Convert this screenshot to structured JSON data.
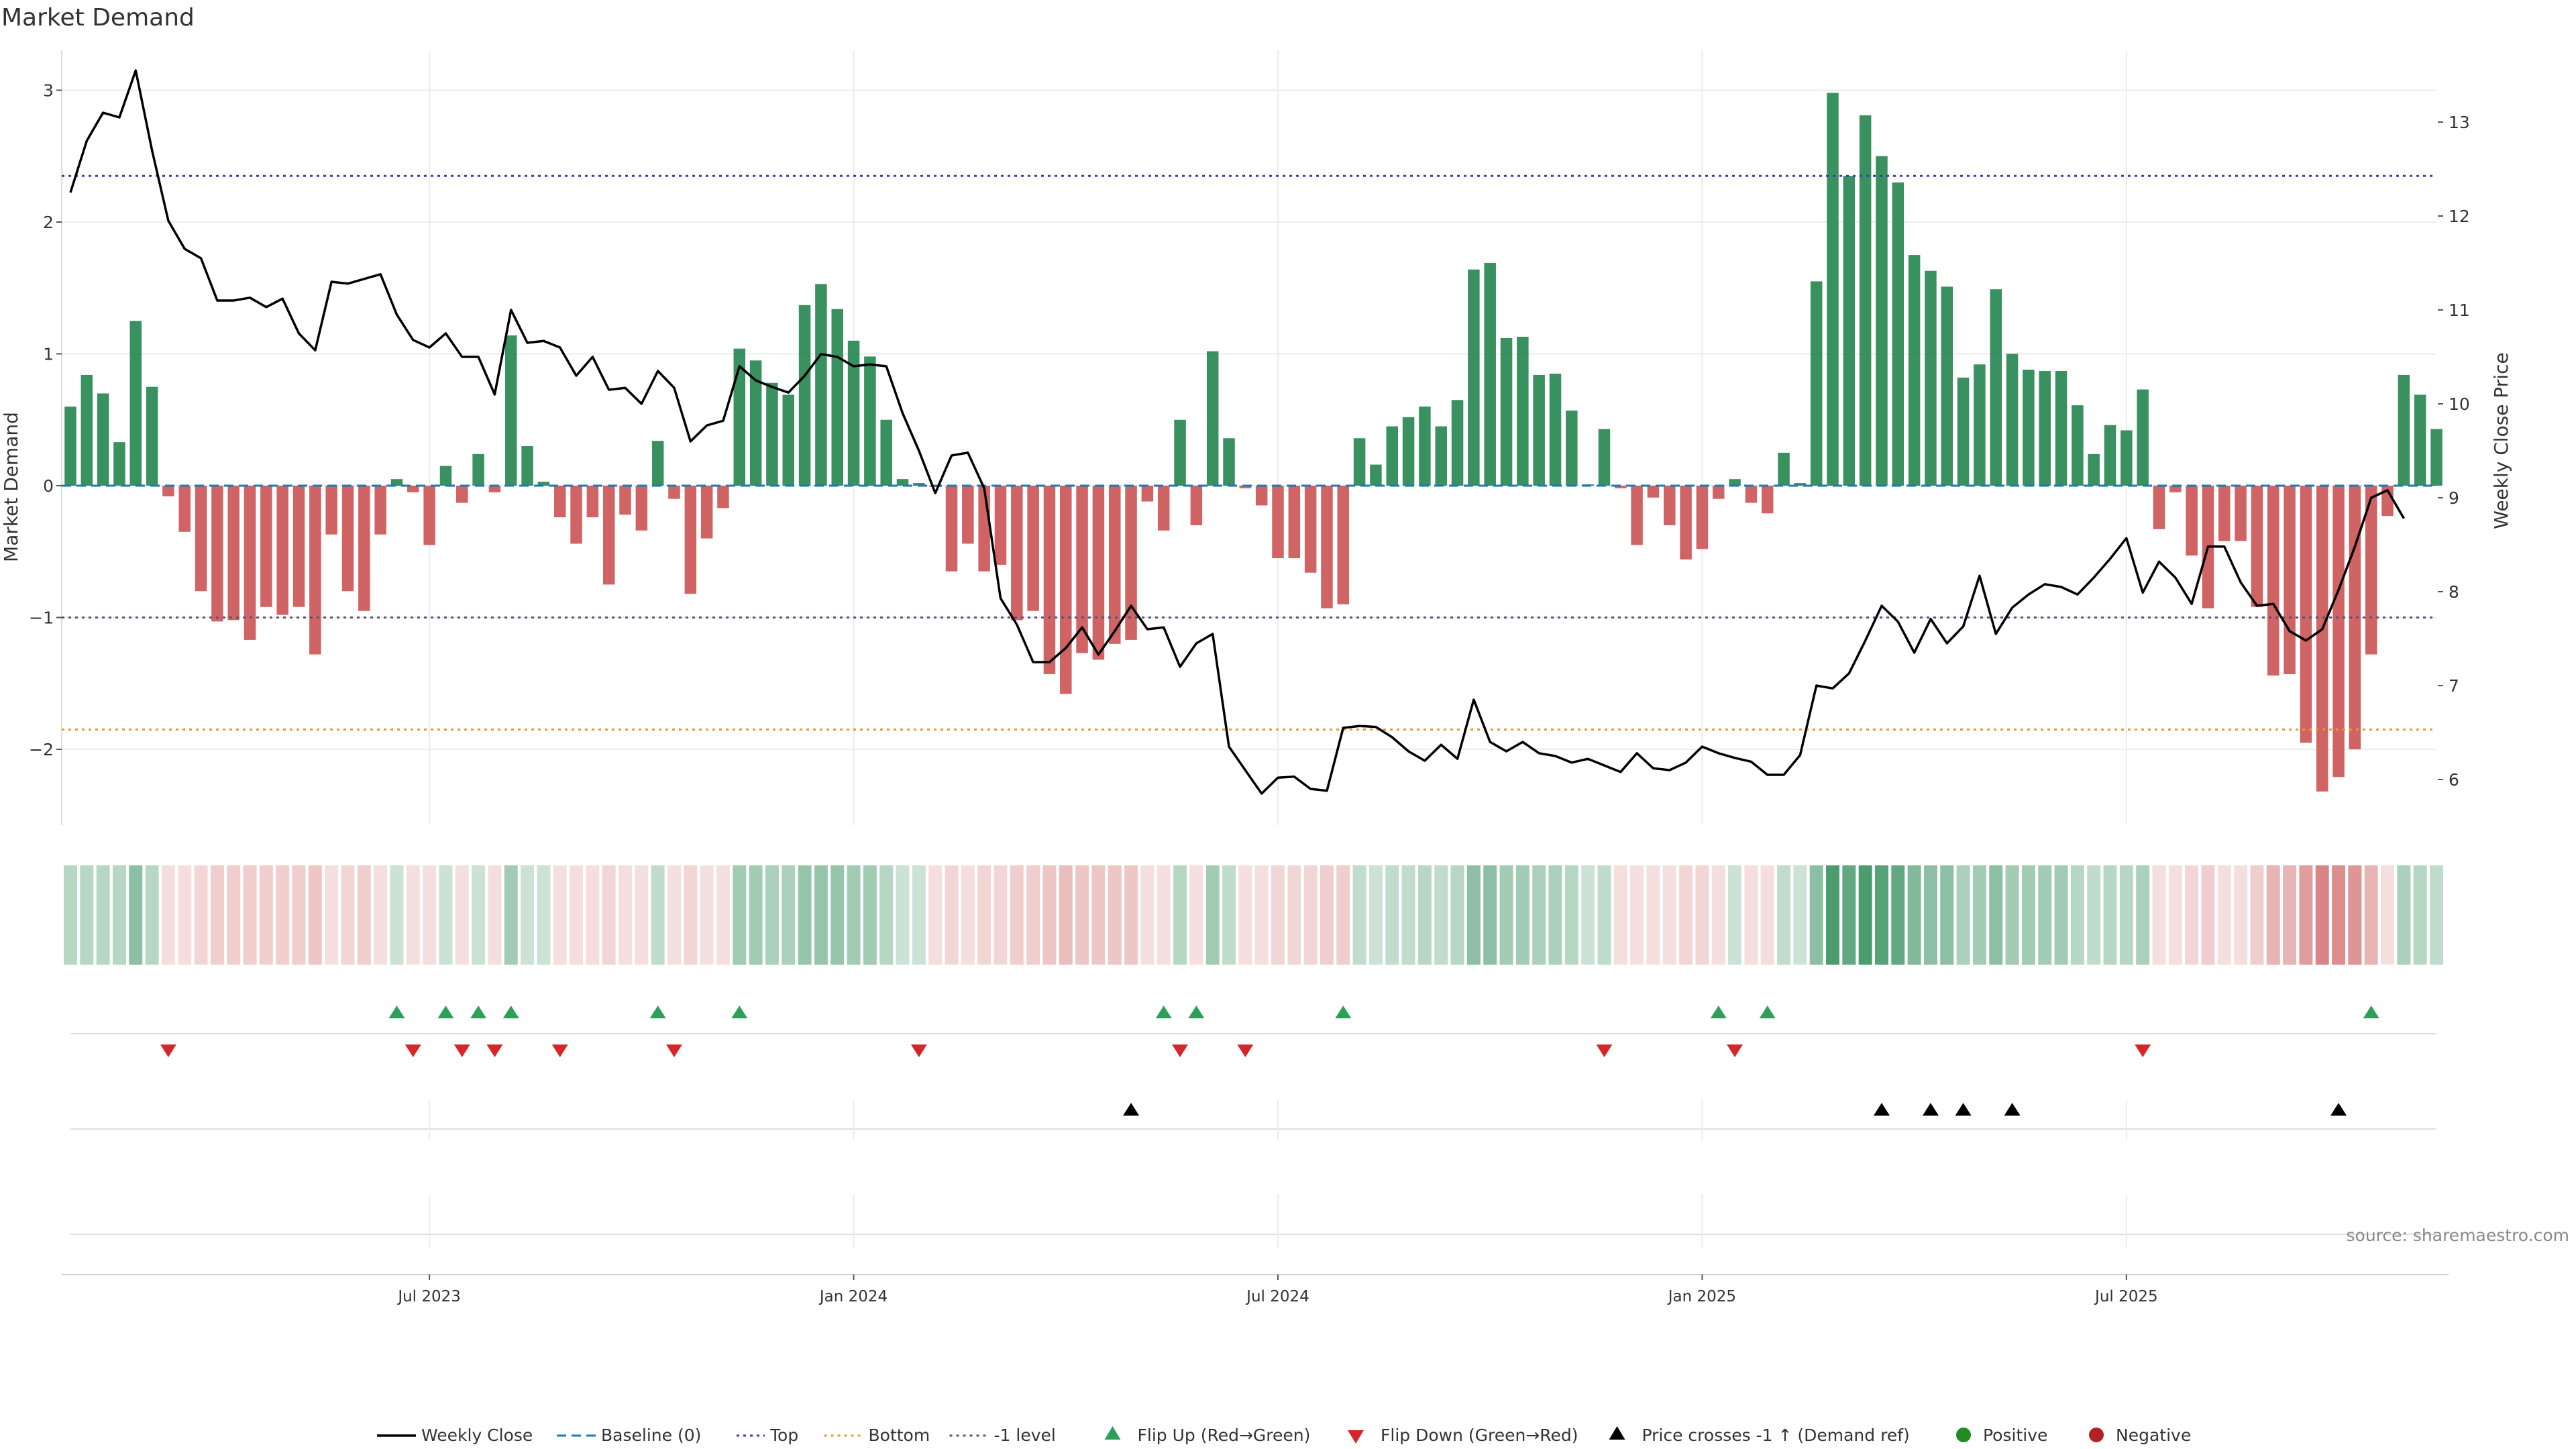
{
  "chart_data": {
    "type": "bar",
    "title": "Market Demand",
    "ylabel": "Market Demand",
    "y2label": "Weekly Close Price",
    "ylim": [
      -2.6,
      3.3
    ],
    "y2lim": [
      5.7,
      13.8
    ],
    "yticks": [
      3,
      2,
      1,
      0,
      -1,
      -2
    ],
    "ytick_labels": [
      "3",
      "2",
      "1",
      "0",
      "−1",
      "−2"
    ],
    "y2ticks": [
      13,
      12,
      11,
      10,
      9,
      8,
      7,
      6
    ],
    "xticks": [
      {
        "label": "Jul 2023",
        "index": 22
      },
      {
        "label": "Jan 2024",
        "index": 48
      },
      {
        "label": "Jul 2024",
        "index": 74
      },
      {
        "label": "Jan 2025",
        "index": 100
      },
      {
        "label": "Jul 2025",
        "index": 126
      }
    ],
    "levels": {
      "top": 2.35,
      "bottom": -1.85,
      "minus_one": -1
    },
    "demand": [
      0.6,
      0.84,
      0.7,
      0.33,
      1.25,
      0.75,
      -0.08,
      -0.35,
      -0.8,
      -1.03,
      -1.02,
      -1.17,
      -0.92,
      -0.98,
      -0.92,
      -1.28,
      -0.37,
      -0.8,
      -0.95,
      -0.37,
      0.05,
      -0.05,
      -0.45,
      0.15,
      -0.13,
      0.24,
      -0.05,
      1.14,
      0.3,
      0.03,
      -0.24,
      -0.44,
      -0.24,
      -0.75,
      -0.22,
      -0.34,
      0.34,
      -0.1,
      -0.82,
      -0.4,
      -0.17,
      1.04,
      0.95,
      0.78,
      0.69,
      1.37,
      1.53,
      1.34,
      1.1,
      0.98,
      0.5,
      0.05,
      0.02,
      -0.01,
      -0.65,
      -0.44,
      -0.65,
      -0.6,
      -1.02,
      -0.95,
      -1.43,
      -1.58,
      -1.27,
      -1.32,
      -1.2,
      -1.17,
      -0.12,
      -0.34,
      0.5,
      -0.3,
      1.02,
      0.36,
      -0.02,
      -0.15,
      -0.55,
      -0.55,
      -0.66,
      -0.93,
      -0.9,
      0.36,
      0.16,
      0.45,
      0.52,
      0.6,
      0.45,
      0.65,
      1.64,
      1.69,
      1.12,
      1.13,
      0.84,
      0.85,
      0.57,
      0.01,
      0.43,
      -0.02,
      -0.45,
      -0.09,
      -0.3,
      -0.56,
      -0.48,
      -0.1,
      0.05,
      -0.13,
      -0.21,
      0.25,
      0.02,
      1.55,
      2.98,
      2.35,
      2.81,
      2.5,
      2.3,
      1.75,
      1.63,
      1.51,
      0.82,
      0.92,
      1.49,
      1.0,
      0.88,
      0.87,
      0.87,
      0.61,
      0.24,
      0.46,
      0.42,
      0.73,
      -0.33,
      -0.05,
      -0.53,
      -0.93,
      -0.42,
      -0.42,
      -0.92,
      -1.44,
      -1.43,
      -1.95,
      -2.32,
      -2.21,
      -2.0,
      -1.28,
      -0.23,
      0.84,
      0.69,
      0.43
    ],
    "weekly_close": [
      12.25,
      12.8,
      13.1,
      13.05,
      13.55,
      12.7,
      11.95,
      11.65,
      11.55,
      11.1,
      11.1,
      11.13,
      11.03,
      11.12,
      10.75,
      10.57,
      11.3,
      11.28,
      11.33,
      11.38,
      10.95,
      10.68,
      10.6,
      10.75,
      10.5,
      10.5,
      10.1,
      11.0,
      10.65,
      10.67,
      10.6,
      10.3,
      10.5,
      10.15,
      10.17,
      10.0,
      10.35,
      10.17,
      9.6,
      9.77,
      9.82,
      10.4,
      10.25,
      10.18,
      10.12,
      10.3,
      10.53,
      10.5,
      10.4,
      10.42,
      10.4,
      9.9,
      9.5,
      9.05,
      9.45,
      9.48,
      9.1,
      7.93,
      7.65,
      7.25,
      7.25,
      7.4,
      7.62,
      7.33,
      7.58,
      7.85,
      7.6,
      7.62,
      7.2,
      7.45,
      7.55,
      6.35,
      6.1,
      5.85,
      6.02,
      6.03,
      5.9,
      5.88,
      6.55,
      6.57,
      6.56,
      6.45,
      6.3,
      6.2,
      6.37,
      6.22,
      6.85,
      6.4,
      6.3,
      6.4,
      6.28,
      6.25,
      6.18,
      6.22,
      6.15,
      6.08,
      6.28,
      6.12,
      6.1,
      6.18,
      6.35,
      6.28,
      6.23,
      6.19,
      6.05,
      6.05,
      6.26,
      7.0,
      6.97,
      7.13,
      7.48,
      7.85,
      7.68,
      7.35,
      7.71,
      7.45,
      7.63,
      8.17,
      7.55,
      7.83,
      7.97,
      8.08,
      8.05,
      7.97,
      8.15,
      8.35,
      8.57,
      7.99,
      8.32,
      8.15,
      7.87,
      8.48,
      8.48,
      8.1,
      7.85,
      7.87,
      7.58,
      7.48,
      7.6,
      8.02,
      8.48,
      9.0,
      9.08,
      8.78
    ],
    "shading": [
      0.35,
      0.35,
      0.35,
      0.35,
      0.55,
      0.35,
      0.2,
      0.2,
      0.25,
      0.3,
      0.3,
      0.3,
      0.3,
      0.3,
      0.3,
      0.35,
      0.2,
      0.25,
      0.3,
      0.2,
      0.25,
      0.2,
      0.2,
      0.25,
      0.2,
      0.25,
      0.2,
      0.45,
      0.25,
      0.25,
      0.2,
      0.2,
      0.2,
      0.25,
      0.2,
      0.2,
      0.3,
      0.2,
      0.25,
      0.2,
      0.2,
      0.45,
      0.45,
      0.4,
      0.4,
      0.5,
      0.5,
      0.5,
      0.45,
      0.45,
      0.35,
      0.25,
      0.25,
      0.2,
      0.25,
      0.2,
      0.25,
      0.25,
      0.3,
      0.3,
      0.35,
      0.4,
      0.35,
      0.35,
      0.35,
      0.35,
      0.2,
      0.2,
      0.35,
      0.2,
      0.45,
      0.3,
      0.2,
      0.2,
      0.25,
      0.25,
      0.25,
      0.3,
      0.3,
      0.3,
      0.25,
      0.3,
      0.3,
      0.35,
      0.3,
      0.35,
      0.55,
      0.55,
      0.45,
      0.45,
      0.4,
      0.4,
      0.35,
      0.25,
      0.3,
      0.2,
      0.2,
      0.2,
      0.2,
      0.25,
      0.25,
      0.2,
      0.25,
      0.2,
      0.2,
      0.3,
      0.25,
      0.55,
      0.85,
      0.75,
      0.85,
      0.8,
      0.75,
      0.6,
      0.55,
      0.55,
      0.4,
      0.45,
      0.55,
      0.45,
      0.45,
      0.45,
      0.45,
      0.35,
      0.3,
      0.35,
      0.35,
      0.4,
      0.2,
      0.2,
      0.25,
      0.3,
      0.2,
      0.2,
      0.3,
      0.45,
      0.45,
      0.6,
      0.75,
      0.7,
      0.65,
      0.45,
      0.2,
      0.4,
      0.35,
      0.3
    ],
    "flip_up": [
      20,
      23,
      25,
      27,
      36,
      41,
      67,
      69,
      78,
      101,
      104,
      141
    ],
    "flip_down": [
      6,
      21,
      24,
      26,
      30,
      37,
      52,
      68,
      72,
      94,
      102,
      127
    ],
    "price_cross_up": [
      65,
      111,
      114,
      116,
      119,
      139
    ],
    "source": "source: sharemaestro.com",
    "colors": {
      "positive": "#2e8b57",
      "negative": "#cd5c5c",
      "close": "#000000",
      "top": "#3b3bb3",
      "bottom": "#e69a2a",
      "minus_one": "#555577",
      "baseline": "#1f77b4",
      "flip_up": "#2ca05a",
      "flip_down": "#d62728",
      "cross": "#000000",
      "pos_marker": "#228b22",
      "neg_marker": "#b22222"
    },
    "legend": [
      {
        "label": "Weekly Close",
        "kind": "line",
        "color": "#000000"
      },
      {
        "label": "Baseline (0)",
        "kind": "dash",
        "color": "#1f77b4"
      },
      {
        "label": "Top",
        "kind": "dot",
        "color": "#3b3bb3"
      },
      {
        "label": "Bottom",
        "kind": "dot",
        "color": "#e69a2a"
      },
      {
        "label": "-1 level",
        "kind": "dot",
        "color": "#555577"
      },
      {
        "label": "Flip Up (Red→Green)",
        "kind": "tri-up",
        "color": "#2ca05a"
      },
      {
        "label": "Flip Down (Green→Red)",
        "kind": "tri-down",
        "color": "#d62728"
      },
      {
        "label": "Price crosses -1 ↑ (Demand ref)",
        "kind": "tri-up",
        "color": "#000000"
      },
      {
        "label": "Positive",
        "kind": "circle",
        "color": "#228b22"
      },
      {
        "label": "Negative",
        "kind": "circle",
        "color": "#b22222"
      }
    ]
  }
}
